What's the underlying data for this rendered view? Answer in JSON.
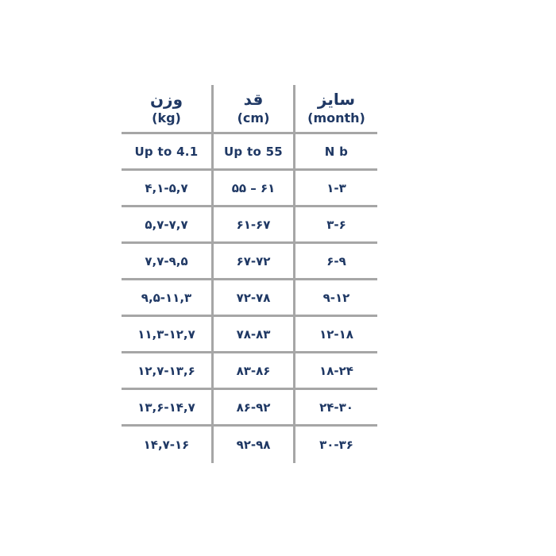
{
  "colors": {
    "text": "#1f3864",
    "line": "#a6a6a6",
    "background": "#ffffff"
  },
  "chart_data": {
    "type": "table",
    "title": "",
    "columns": [
      {
        "key": "weight",
        "title": "وزن",
        "unit": "(kg)"
      },
      {
        "key": "height",
        "title": "قد",
        "unit": "(cm)"
      },
      {
        "key": "size",
        "title": "سایز",
        "unit": "(month)"
      }
    ],
    "rows": [
      [
        "Up to 4.1",
        "Up to 55",
        "N b"
      ],
      [
        "۴,۱-۵,۷",
        "۵۵ – ۶۱",
        "۱-۳"
      ],
      [
        "۵,۷-۷,۷",
        "۶۱-۶۷",
        "۳-۶"
      ],
      [
        "۷,۷-۹,۵",
        "۶۷-۷۲",
        "۶-۹"
      ],
      [
        "۹,۵-۱۱,۳",
        "۷۲-۷۸",
        "۹-۱۲"
      ],
      [
        "۱۱,۳-۱۲,۷",
        "۷۸-۸۳",
        "۱۲-۱۸"
      ],
      [
        "۱۲,۷-۱۳,۶",
        "۸۳-۸۶",
        "۱۸-۲۴"
      ],
      [
        "۱۳,۶-۱۴,۷",
        "۸۶-۹۲",
        "۲۴-۳۰"
      ],
      [
        "۱۴,۷-۱۶",
        "۹۲-۹۸",
        "۳۰-۳۶"
      ]
    ],
    "layout": {
      "grid": "horizontal lines between rows, vertical lines between columns only",
      "outer_border": "none"
    }
  }
}
